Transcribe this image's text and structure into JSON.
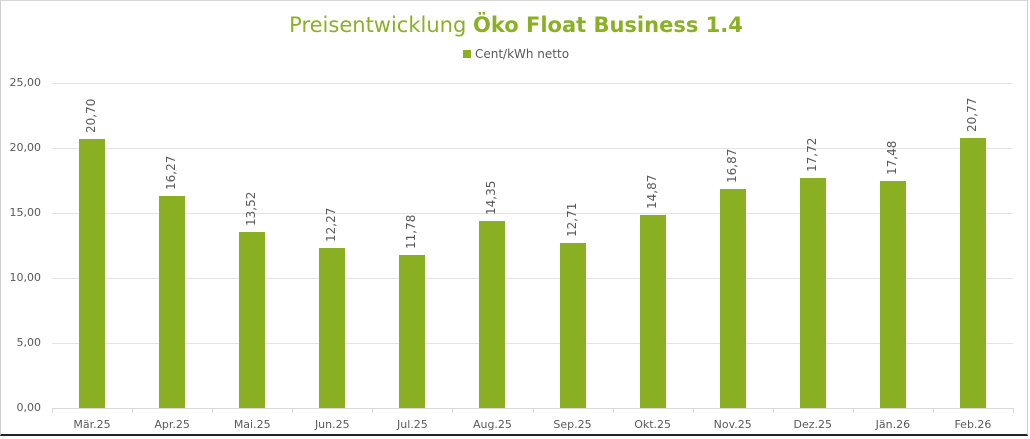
{
  "chart_data": {
    "type": "bar",
    "title": "Preisentwicklung Öko Float Business 1.4",
    "title_parts": {
      "regular": "Preisentwicklung ",
      "bold": "Öko Float Business 1.4"
    },
    "legend": [
      "Cent/kWh netto"
    ],
    "legend_position": "top",
    "xlabel": "",
    "ylabel": "",
    "ylim": [
      0,
      25
    ],
    "yticks": [
      "0,00",
      "5,00",
      "10,00",
      "15,00",
      "20,00",
      "25,00"
    ],
    "grid": true,
    "categories": [
      "Mär.25",
      "Apr.25",
      "Mai.25",
      "Jun.25",
      "Jul.25",
      "Aug.25",
      "Sep.25",
      "Okt.25",
      "Nov.25",
      "Dez.25",
      "Jän.26",
      "Feb.26"
    ],
    "series": [
      {
        "name": "Cent/kWh netto",
        "color": "#8BAF22",
        "values": [
          20.7,
          16.27,
          13.52,
          12.27,
          11.78,
          14.35,
          12.71,
          14.87,
          16.87,
          17.72,
          17.48,
          20.77
        ],
        "labels": [
          "20,70",
          "16,27",
          "13,52",
          "12,27",
          "11,78",
          "14,35",
          "12,71",
          "14,87",
          "16,87",
          "17,72",
          "17,48",
          "20,77"
        ]
      }
    ]
  },
  "colors": {
    "accent": "#8BAF22",
    "title": "#8BB025",
    "text": "#595959",
    "grid": "#E4E4E4"
  }
}
